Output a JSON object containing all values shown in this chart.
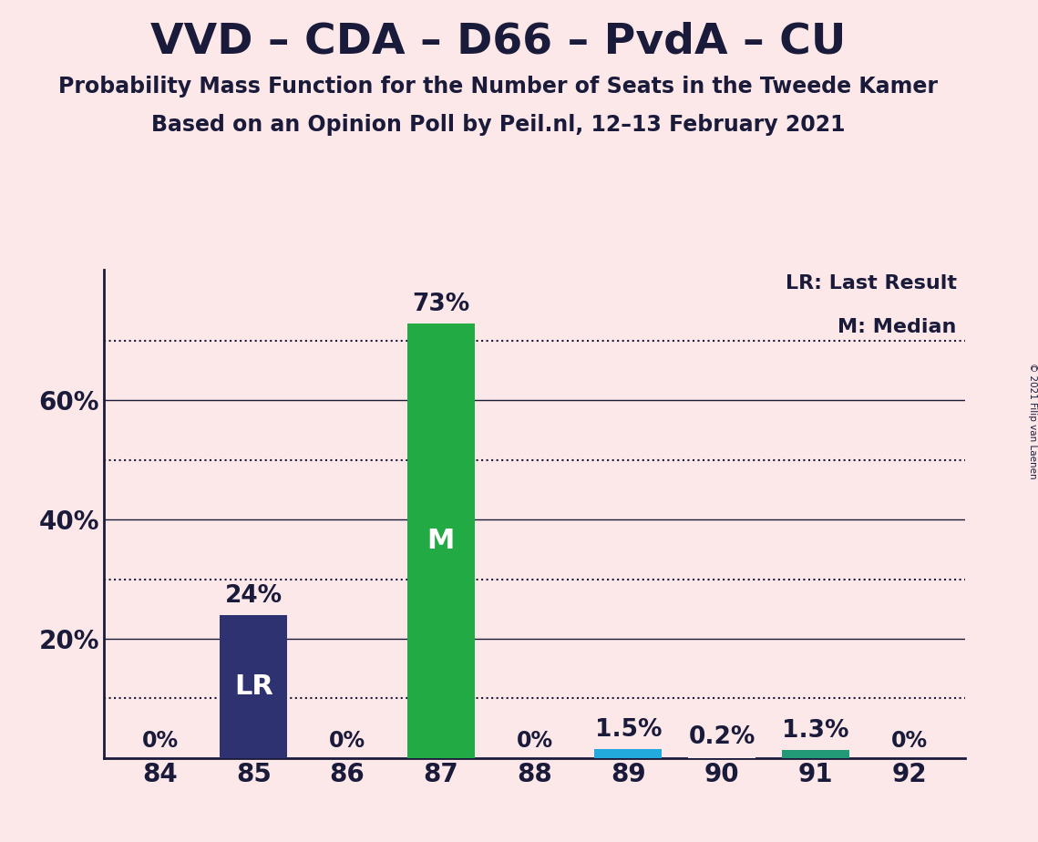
{
  "title": "VVD – CDA – D66 – PvdA – CU",
  "subtitle1": "Probability Mass Function for the Number of Seats in the Tweede Kamer",
  "subtitle2": "Based on an Opinion Poll by Peil.nl, 12–13 February 2021",
  "copyright": "© 2021 Filip van Laenen",
  "seats": [
    84,
    85,
    86,
    87,
    88,
    89,
    90,
    91,
    92
  ],
  "probabilities": [
    0.0,
    24.0,
    0.0,
    73.0,
    0.0,
    1.5,
    0.2,
    1.3,
    0.0
  ],
  "bar_colors": [
    "#fce8e8",
    "#2e3270",
    "#fce8e8",
    "#22aa44",
    "#fce8e8",
    "#22aadd",
    "#fce8e8",
    "#229977",
    "#fce8e8"
  ],
  "bar_labels": [
    "0%",
    "24%",
    "0%",
    "73%",
    "0%",
    "1.5%",
    "0.2%",
    "1.3%",
    "0%"
  ],
  "bar_inner_labels": [
    "",
    "LR",
    "",
    "M",
    "",
    "",
    "",
    "",
    ""
  ],
  "ylim": [
    0,
    82
  ],
  "yticks": [
    20,
    40,
    60
  ],
  "ytick_labels": [
    "20%",
    "40%",
    "60%"
  ],
  "solid_lines": [
    20,
    40,
    60
  ],
  "dotted_lines": [
    10,
    30,
    50,
    70
  ],
  "background_color": "#fce8e8",
  "axes_color": "#1a1a3a",
  "legend_lr": "LR: Last Result",
  "legend_m": "M: Median",
  "title_fontsize": 34,
  "subtitle_fontsize": 17,
  "label_fontsize": 17,
  "tick_fontsize": 20,
  "inner_label_fontsize": 22
}
